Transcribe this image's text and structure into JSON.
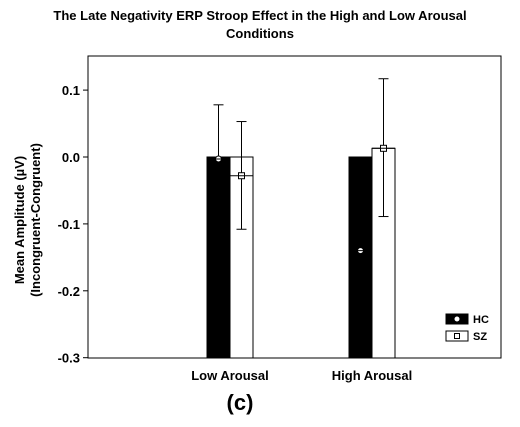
{
  "chart_data": {
    "type": "bar",
    "title_line1": "The Late Negativity ERP Stroop Effect in the High and Low Arousal",
    "title_line2": "Conditions",
    "ylabel_line1": "Mean Amplitude (µV)",
    "ylabel_line2": "(Incongruent-Congruent)",
    "xlabel": "",
    "categories": [
      "Low Arousal",
      "High Arousal"
    ],
    "ylim": [
      -0.3,
      0.15
    ],
    "yticks": [
      0.1,
      0.0,
      -0.1,
      -0.2,
      -0.3
    ],
    "ytick_labels": [
      "0.1",
      "0.0",
      "-0.1",
      "-0.2",
      "-0.3"
    ],
    "series": [
      {
        "name": "HC",
        "values": [
          -0.003,
          -0.14
        ],
        "err_high": [
          0.078,
          -0.036
        ],
        "err_low": [
          -0.003,
          -0.14
        ],
        "color": "#000000",
        "marker": "circle"
      },
      {
        "name": "SZ",
        "values": [
          -0.028,
          0.013
        ],
        "err_high": [
          0.053,
          0.117
        ],
        "err_low": [
          -0.108,
          -0.089
        ],
        "color": "#ffffff",
        "marker": "square"
      }
    ],
    "legend_position": "bottom-right",
    "grid": false,
    "panel_label": "(c)"
  }
}
